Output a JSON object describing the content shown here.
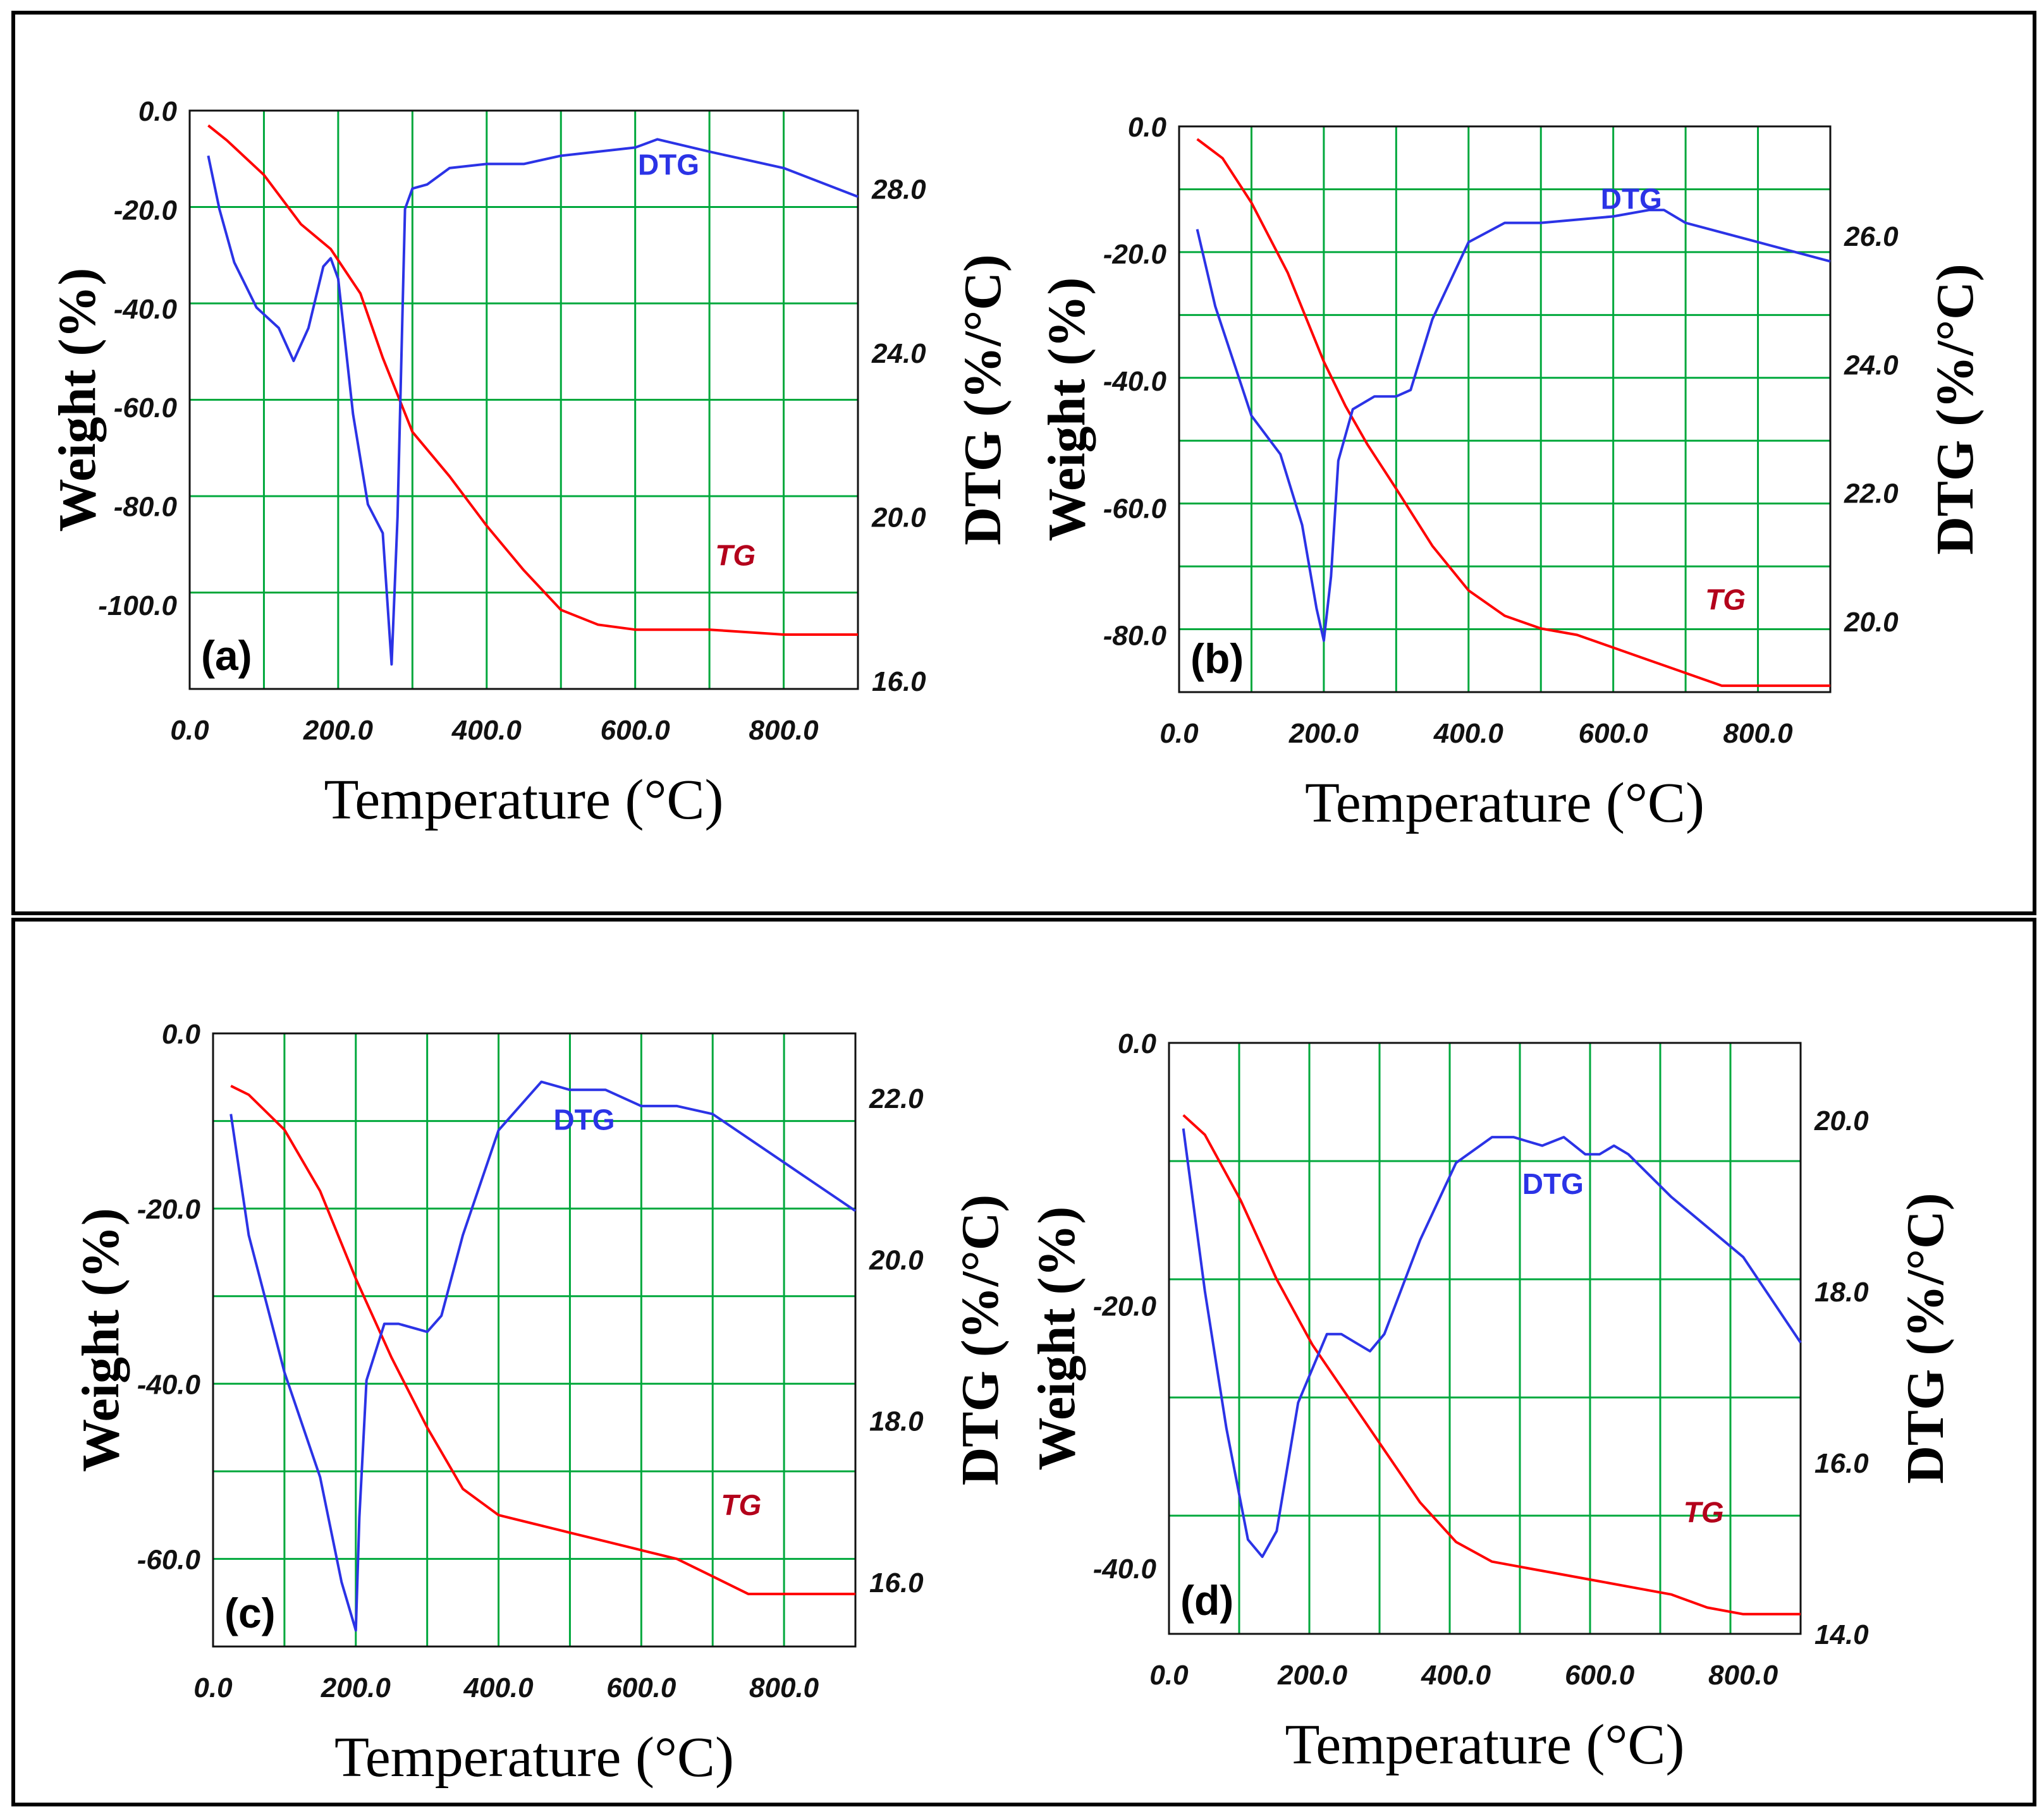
{
  "colors": {
    "grid": "#00a83c",
    "tg": "#ff0000",
    "dtg": "#2b33e6",
    "tg_label": "#b3001b",
    "dtg_label": "#2b33e6",
    "border": "#000000"
  },
  "chart_data": [
    {
      "type": "line",
      "panel_label": "(a)",
      "xlabel": "Temperature (°C)",
      "ylabel": "Weight (%)",
      "y2label": "DTG (%/°C)",
      "xlim": [
        0,
        900
      ],
      "ylim": [
        -117,
        0
      ],
      "y2lim": [
        15.8,
        29.9
      ],
      "x_ticks": [
        "0.0",
        "200.0",
        "400.0",
        "600.0",
        "800.0"
      ],
      "y_ticks": [
        "0.0",
        "-20.0",
        "-40.0",
        "-60.0",
        "-80.0",
        "-100.0"
      ],
      "y2_ticks": [
        "28.0",
        "24.0",
        "20.0",
        "16.0"
      ],
      "grid": true,
      "series": [
        {
          "name": "TG",
          "axis": "left",
          "x": [
            25,
            50,
            100,
            150,
            190,
            230,
            260,
            300,
            350,
            400,
            450,
            500,
            550,
            600,
            650,
            700,
            800,
            900
          ],
          "y": [
            -3,
            -6,
            -13,
            -23,
            -28,
            -37,
            -50,
            -65,
            -74,
            -84,
            -93,
            -101,
            -104,
            -105,
            -105,
            -105,
            -106,
            -106
          ]
        },
        {
          "name": "DTG",
          "axis": "right",
          "x": [
            25,
            40,
            60,
            90,
            120,
            140,
            160,
            180,
            190,
            200,
            220,
            240,
            260,
            272,
            280,
            290,
            300,
            320,
            350,
            400,
            450,
            500,
            600,
            630,
            700,
            800,
            900
          ],
          "y": [
            28.8,
            27.5,
            26.2,
            25.1,
            24.6,
            23.8,
            24.6,
            26.1,
            26.3,
            25.8,
            22.5,
            20.3,
            19.6,
            16.4,
            20.0,
            27.5,
            28.0,
            28.1,
            28.5,
            28.6,
            28.6,
            28.8,
            29.0,
            29.2,
            28.9,
            28.5,
            27.8
          ]
        }
      ],
      "annotations": [
        {
          "text": "DTG",
          "x": 645,
          "y": -13
        },
        {
          "text": "TG",
          "x": 735,
          "y": -92
        }
      ]
    },
    {
      "type": "line",
      "panel_label": "(b)",
      "xlabel": "Temperature (°C)",
      "ylabel": "Weight (%)",
      "y2label": "DTG (%/°C)",
      "xlim": [
        0,
        900
      ],
      "ylim": [
        -89,
        0
      ],
      "y2lim": [
        18.9,
        27.7
      ],
      "x_ticks": [
        "0.0",
        "200.0",
        "400.0",
        "600.0",
        "800.0"
      ],
      "y_ticks": [
        "0.0",
        "-20.0",
        "-40.0",
        "-60.0",
        "-80.0"
      ],
      "y2_ticks": [
        "26.0",
        "24.0",
        "22.0",
        "20.0"
      ],
      "grid": true,
      "series": [
        {
          "name": "TG",
          "axis": "left",
          "x": [
            25,
            60,
            100,
            150,
            200,
            230,
            260,
            300,
            350,
            400,
            450,
            500,
            550,
            600,
            650,
            700,
            750,
            800,
            900
          ],
          "y": [
            -2,
            -5,
            -12,
            -23,
            -37,
            -44,
            -50,
            -57,
            -66,
            -73,
            -77,
            -79,
            -80,
            -82,
            -84,
            -86,
            -88,
            -88,
            -88
          ]
        },
        {
          "name": "DTG",
          "axis": "right",
          "x": [
            25,
            50,
            100,
            140,
            170,
            190,
            200,
            210,
            220,
            240,
            270,
            300,
            320,
            350,
            400,
            450,
            500,
            600,
            650,
            670,
            700,
            800,
            900
          ],
          "y": [
            26.1,
            24.9,
            23.2,
            22.6,
            21.5,
            20.2,
            19.7,
            20.7,
            22.5,
            23.3,
            23.5,
            23.5,
            23.6,
            24.7,
            25.9,
            26.2,
            26.2,
            26.3,
            26.4,
            26.4,
            26.2,
            25.9,
            25.6
          ]
        }
      ],
      "annotations": [
        {
          "text": "DTG",
          "x": 625,
          "y": -13
        },
        {
          "text": "TG",
          "x": 755,
          "y": -76
        }
      ]
    },
    {
      "type": "line",
      "panel_label": "(c)",
      "xlabel": "Temperature (°C)",
      "ylabel": "Weight (%)",
      "y2label": "DTG (%/°C)",
      "xlim": [
        0,
        900
      ],
      "ylim": [
        -70,
        0
      ],
      "y2lim": [
        15.2,
        22.8
      ],
      "x_ticks": [
        "0.0",
        "200.0",
        "400.0",
        "600.0",
        "800.0"
      ],
      "y_ticks": [
        "0.0",
        "-20.0",
        "-40.0",
        "-60.0"
      ],
      "y2_ticks": [
        "22.0",
        "20.0",
        "18.0",
        "16.0"
      ],
      "grid": true,
      "series": [
        {
          "name": "TG",
          "axis": "left",
          "x": [
            25,
            50,
            100,
            150,
            200,
            250,
            300,
            350,
            400,
            450,
            500,
            550,
            600,
            650,
            700,
            750,
            800,
            900
          ],
          "y": [
            -6,
            -7,
            -11,
            -18,
            -28,
            -37,
            -45,
            -52,
            -55,
            -56,
            -57,
            -58,
            -59,
            -60,
            -62,
            -64,
            -64,
            -64
          ]
        },
        {
          "name": "DTG",
          "axis": "right",
          "x": [
            25,
            50,
            100,
            150,
            180,
            200,
            205,
            215,
            240,
            260,
            300,
            320,
            350,
            400,
            450,
            460,
            500,
            550,
            600,
            650,
            700,
            800,
            900
          ],
          "y": [
            21.8,
            20.3,
            18.6,
            17.3,
            16.0,
            15.4,
            16.8,
            18.5,
            19.2,
            19.2,
            19.1,
            19.3,
            20.3,
            21.6,
            22.1,
            22.2,
            22.1,
            22.1,
            21.9,
            21.9,
            21.8,
            21.2,
            20.6
          ]
        }
      ],
      "annotations": [
        {
          "text": "DTG",
          "x": 520,
          "y": -11
        },
        {
          "text": "TG",
          "x": 740,
          "y": -55
        }
      ]
    },
    {
      "type": "line",
      "panel_label": "(d)",
      "xlabel": "Temperature (°C)",
      "ylabel": "Weight (%)",
      "y2label": "DTG (%/°C)",
      "xlim": [
        0,
        880
      ],
      "ylim": [
        -45,
        0
      ],
      "y2lim": [
        14.0,
        20.9
      ],
      "x_ticks": [
        "0.0",
        "200.0",
        "400.0",
        "600.0",
        "800.0"
      ],
      "y_ticks": [
        "0.0",
        "-20.0",
        "-40.0"
      ],
      "y2_ticks": [
        "20.0",
        "18.0",
        "16.0",
        "14.0"
      ],
      "grid": true,
      "series": [
        {
          "name": "TG",
          "axis": "left",
          "x": [
            20,
            50,
            100,
            150,
            200,
            250,
            300,
            350,
            400,
            450,
            500,
            550,
            600,
            650,
            700,
            750,
            800,
            880
          ],
          "y": [
            -5.5,
            -7,
            -12,
            -18,
            -23,
            -27,
            -31,
            -35,
            -38,
            -39.5,
            -40,
            -40.5,
            -41,
            -41.5,
            -42,
            -43,
            -43.5,
            -43.5
          ]
        },
        {
          "name": "DTG",
          "axis": "right",
          "x": [
            20,
            50,
            80,
            110,
            130,
            150,
            180,
            220,
            240,
            260,
            280,
            300,
            350,
            400,
            450,
            480,
            520,
            550,
            580,
            600,
            620,
            640,
            700,
            800,
            880
          ],
          "y": [
            19.9,
            18.0,
            16.4,
            15.1,
            14.9,
            15.2,
            16.7,
            17.5,
            17.5,
            17.4,
            17.3,
            17.5,
            18.6,
            19.5,
            19.8,
            19.8,
            19.7,
            19.8,
            19.6,
            19.6,
            19.7,
            19.6,
            19.1,
            18.4,
            17.4
          ]
        }
      ],
      "annotations": [
        {
          "text": "DTG",
          "x": 535,
          "y": -11.5
        },
        {
          "text": "TG",
          "x": 745,
          "y": -36.5
        }
      ]
    }
  ]
}
